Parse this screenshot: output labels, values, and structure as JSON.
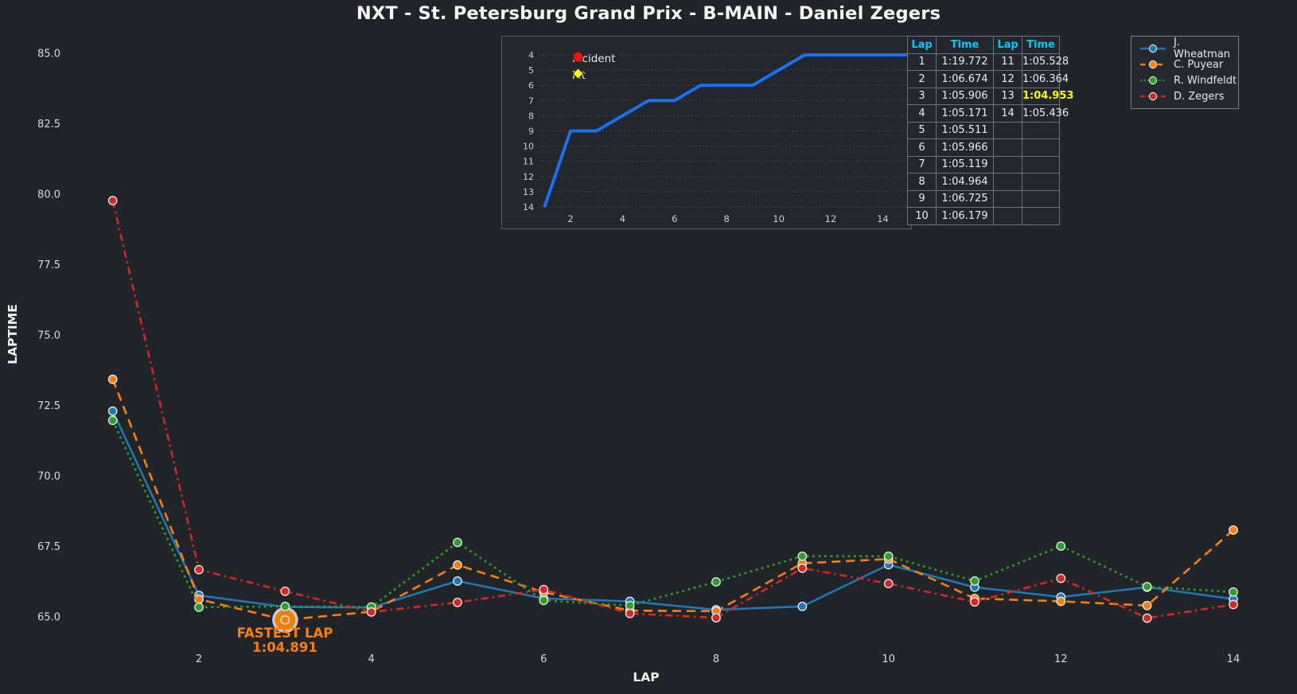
{
  "title": "NXT - St. Petersburg Grand Prix - B-MAIN - Daniel Zegers",
  "colors": {
    "background": "#212428",
    "text": "#ececec",
    "tick_text": "#d9d9d9",
    "table_header_cyan": "#00c8ff",
    "fastest_yellow": "#ffff00",
    "annotation_orange": "#ff7f0e",
    "inset_line_blue": "#1c6ef2",
    "wheatman_blue": "#1f77b4",
    "puyear_orange": "#ff7f0e",
    "windfeldt_green": "#2ca02c",
    "zegers_red": "#d62728"
  },
  "chart_data": [
    {
      "id": "laptime-chart",
      "type": "line",
      "title": "NXT - St. Petersburg Grand Prix - B-MAIN - Daniel Zegers",
      "xlabel": "LAP",
      "ylabel": "LAPTIME",
      "x": [
        1,
        2,
        3,
        4,
        5,
        6,
        7,
        8,
        9,
        10,
        11,
        12,
        13,
        14
      ],
      "xticks": [
        2,
        4,
        6,
        8,
        10,
        12,
        14
      ],
      "yticks": [
        "65.0",
        "67.5",
        "70.0",
        "72.5",
        "75.0",
        "77.5",
        "80.0",
        "82.5",
        "85.0"
      ],
      "ylim": [
        64.3,
        85.8
      ],
      "grid": false,
      "legend_position": "top-right",
      "series": [
        {
          "name": "J. Wheatman",
          "color": "#1f77b4",
          "dash": "solid",
          "values": [
            72.3,
            65.76,
            65.35,
            65.33,
            66.27,
            65.65,
            65.55,
            65.25,
            65.37,
            66.85,
            66.05,
            65.7,
            66.05,
            65.63
          ]
        },
        {
          "name": "C. Puyear",
          "color": "#ff7f0e",
          "dash": "dashed",
          "values": [
            73.43,
            65.62,
            64.891,
            65.18,
            66.84,
            65.87,
            65.22,
            65.2,
            66.9,
            67.05,
            65.65,
            65.55,
            65.4,
            68.08
          ]
        },
        {
          "name": "R. Windfeldt",
          "color": "#2ca02c",
          "dash": "dotted",
          "values": [
            71.97,
            65.34,
            65.37,
            65.35,
            67.64,
            65.58,
            65.4,
            66.24,
            67.15,
            67.15,
            66.27,
            67.51,
            66.07,
            65.88
          ]
        },
        {
          "name": "D. Zegers",
          "color": "#d62728",
          "dash": "dashdot",
          "values": [
            79.772,
            66.674,
            65.906,
            65.171,
            65.511,
            65.966,
            65.119,
            64.964,
            66.725,
            66.179,
            65.528,
            66.364,
            64.953,
            65.436
          ]
        }
      ],
      "annotation": {
        "label_line1": "FASTEST LAP",
        "label_line2": "1:04.891",
        "series": "C. Puyear",
        "lap": 3,
        "value": 64.891,
        "color": "#ff7f0e"
      }
    },
    {
      "id": "position-inset",
      "type": "line",
      "x": [
        1,
        2,
        3,
        4,
        5,
        6,
        7,
        8,
        9,
        10,
        11,
        12,
        13,
        14,
        15
      ],
      "xticks": [
        2,
        4,
        6,
        8,
        10,
        12,
        14
      ],
      "yticks": [
        4,
        5,
        6,
        7,
        8,
        9,
        10,
        11,
        12,
        13,
        14
      ],
      "y_inverted": true,
      "grid": true,
      "series": [
        {
          "name": "Position",
          "color": "#1c6ef2",
          "values": [
            14,
            9,
            9,
            8,
            7,
            7,
            6,
            6,
            6,
            5,
            4,
            4,
            4,
            4,
            4
          ]
        }
      ],
      "legend": [
        {
          "label": "Incident",
          "marker": "circle",
          "color": "#ff0f0f"
        },
        {
          "label": "Pit",
          "marker": "diamond",
          "color": "#ffff00"
        }
      ]
    },
    {
      "id": "lap-table",
      "type": "table",
      "headers": [
        "Lap",
        "Time",
        "Lap",
        "Time"
      ],
      "rows": [
        [
          "1",
          "1:19.772",
          "11",
          "1:05.528"
        ],
        [
          "2",
          "1:06.674",
          "12",
          "1:06.364"
        ],
        [
          "3",
          "1:05.906",
          "13",
          "1:04.953"
        ],
        [
          "4",
          "1:05.171",
          "14",
          "1:05.436"
        ],
        [
          "5",
          "1:05.511",
          "",
          ""
        ],
        [
          "6",
          "1:05.966",
          "",
          ""
        ],
        [
          "7",
          "1:05.119",
          "",
          ""
        ],
        [
          "8",
          "1:04.964",
          "",
          ""
        ],
        [
          "9",
          "1:06.725",
          "",
          ""
        ],
        [
          "10",
          "1:06.179",
          "",
          ""
        ]
      ],
      "highlight_cell": {
        "row": 2,
        "col": 3,
        "value": "1:04.953"
      }
    }
  ]
}
